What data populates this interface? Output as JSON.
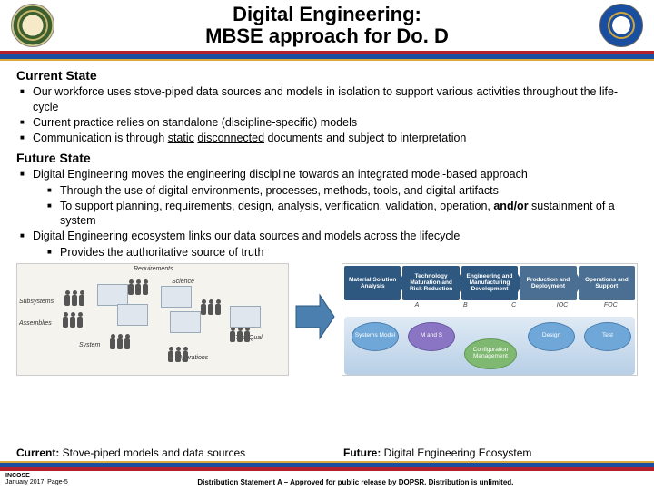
{
  "colors": {
    "bar_red": "#b3202c",
    "bar_blue": "#1a4ea0",
    "bar_gold": "#d9a93e",
    "text": "#000000",
    "bg": "#ffffff"
  },
  "title": {
    "line1": "Digital Engineering:",
    "line2": "MBSE approach for Do. D"
  },
  "current": {
    "heading": "Current State",
    "items": [
      {
        "text": "Our workforce uses stove-piped data sources and models in isolation to support various activities throughout the life-cycle"
      },
      {
        "text": "Current practice relies on standalone (discipline-specific) models"
      },
      {
        "prefix": "Communication is through ",
        "u1": "static",
        "mid": " ",
        "u2": "disconnected",
        "suffix": " documents and subject to interpretation"
      }
    ]
  },
  "future": {
    "heading": "Future State",
    "items": [
      {
        "text": "Digital Engineering moves the engineering discipline towards an integrated model-based approach",
        "sub": [
          {
            "text": "Through the use of digital environments, processes, methods, tools, and digital artifacts"
          },
          {
            "prefix": "To support planning, requirements, design, analysis, verification, validation, operation, ",
            "bold": "and/or",
            "suffix": " sustainment of a system"
          }
        ]
      },
      {
        "text": "Digital Engineering ecosystem links our data sources and models across the lifecycle",
        "sub": [
          {
            "text": "Provides the authoritative source of truth"
          }
        ]
      }
    ]
  },
  "graphic_left": {
    "labels": {
      "req": "Requirements",
      "sci": "Science",
      "sub": "Subsystems",
      "asm": "Assemblies",
      "sys": "System",
      "ops": "Operations",
      "tst": "Test/Qual"
    }
  },
  "graphic_right": {
    "phases": [
      {
        "label": "Material Solution Analysis",
        "color": "#2e587f"
      },
      {
        "label": "Technology Maturation and Risk Reduction",
        "color": "#2e587f"
      },
      {
        "label": "Engineering and Manufacturing Development",
        "color": "#2e587f"
      },
      {
        "label": "Production and Deployment",
        "color": "#4a6f92"
      },
      {
        "label": "Operations and Support",
        "color": "#4a6f92"
      }
    ],
    "milestones": [
      "",
      "A",
      "B",
      "C",
      "IOC",
      "FOC"
    ],
    "ecosystem": [
      {
        "label": "Systems Model"
      },
      {
        "label": "M and S"
      },
      {
        "label": "Configuration Management"
      },
      {
        "label": "Design"
      },
      {
        "label": "Test"
      }
    ]
  },
  "captions": {
    "left_bold": "Current:",
    "left_rest": " Stove-piped models and data sources",
    "right_bold": "Future:",
    "right_rest": " Digital Engineering Ecosystem"
  },
  "footer": {
    "left_line1": "INCOSE",
    "left_line2": "January 2017| Page-5",
    "center": "Distribution Statement A – Approved for public release by DOPSR. Distribution is unlimited."
  }
}
